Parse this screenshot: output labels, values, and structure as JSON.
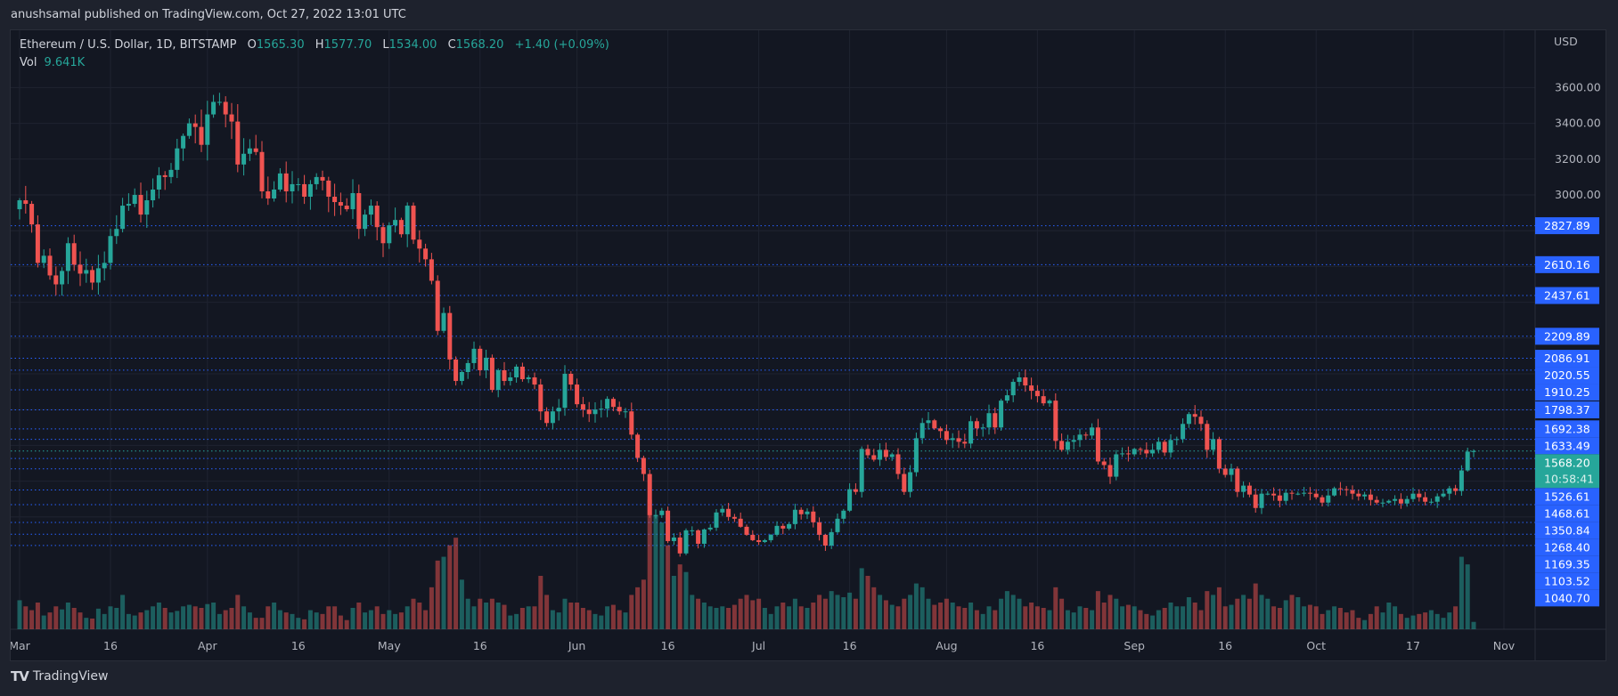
{
  "header": {
    "published": "anushsamal published on TradingView.com, Oct 27, 2022 13:01 UTC",
    "symbol": "Ethereum / U.S. Dollar, 1D, BITSTAMP",
    "o_label": "O",
    "o": "1565.30",
    "h_label": "H",
    "h": "1577.70",
    "l_label": "L",
    "l": "1534.00",
    "c_label": "C",
    "c": "1568.20",
    "change": "+1.40 (+0.09%)",
    "vol_label": "Vol",
    "vol_value": "9.641K"
  },
  "footer": {
    "logo_text": "TradingView",
    "logo_mark": "TV"
  },
  "colors": {
    "up": "#26a69a",
    "down": "#ef5350",
    "level_line": "#2962ff",
    "background": "#131722",
    "last_price": "#26a69a"
  },
  "chart_data": {
    "type": "candlestick",
    "currency_label": "USD",
    "interval": "1D",
    "y_scale": "linear",
    "grid": true,
    "y_ticks": [
      "3600.00",
      "3400.00",
      "3200.00",
      "3000.00"
    ],
    "x_ticks": [
      {
        "label": "Mar",
        "date": "2022-03-01"
      },
      {
        "label": "16",
        "date": "2022-03-16"
      },
      {
        "label": "Apr",
        "date": "2022-04-01"
      },
      {
        "label": "16",
        "date": "2022-04-16"
      },
      {
        "label": "May",
        "date": "2022-05-01"
      },
      {
        "label": "16",
        "date": "2022-05-16"
      },
      {
        "label": "Jun",
        "date": "2022-06-01"
      },
      {
        "label": "16",
        "date": "2022-06-16"
      },
      {
        "label": "Jul",
        "date": "2022-07-01"
      },
      {
        "label": "16",
        "date": "2022-07-16"
      },
      {
        "label": "Aug",
        "date": "2022-08-01"
      },
      {
        "label": "16",
        "date": "2022-08-16"
      },
      {
        "label": "Sep",
        "date": "2022-09-01"
      },
      {
        "label": "16",
        "date": "2022-09-16"
      },
      {
        "label": "Oct",
        "date": "2022-10-01"
      },
      {
        "label": "17",
        "date": "2022-10-17"
      },
      {
        "label": "Nov",
        "date": "2022-11-01"
      }
    ],
    "levels": [
      "2827.89",
      "2610.16",
      "2437.61",
      "2209.89",
      "2086.91",
      "2020.55",
      "1910.25",
      "1798.37",
      "1692.38",
      "1633.49",
      "1526.61",
      "1468.61",
      "1350.84",
      "1268.40",
      "1169.35",
      "1103.52",
      "1040.70"
    ],
    "last_price": "1568.20",
    "countdown": "10:58:41",
    "last_candle": {
      "open": 1565.3,
      "high": 1577.7,
      "low": 1534.0,
      "close": 1568.2
    },
    "daily_closes": {
      "2022-03": [
        2970,
        2950,
        2835,
        2620,
        2660,
        2550,
        2500,
        2575,
        2730,
        2610,
        2560,
        2580,
        2510,
        2590,
        2620,
        2770,
        2810,
        2940,
        2950,
        3000,
        2890,
        2970,
        3030,
        3110,
        3100,
        3140,
        3260,
        3330,
        3400,
        3380,
        3280
      ],
      "2022-04": [
        3450,
        3520,
        3520,
        3450,
        3410,
        3170,
        3230,
        3260,
        3240,
        3020,
        2980,
        3030,
        3120,
        3020,
        3060,
        3060,
        2990,
        3060,
        3100,
        3080,
        2990,
        2960,
        2940,
        2920,
        3010,
        2810,
        2890,
        2940,
        2820,
        2730
      ],
      "2022-05": [
        2830,
        2860,
        2780,
        2940,
        2750,
        2700,
        2640,
        2520,
        2240,
        2340,
        2080,
        1960,
        2010,
        2060,
        2140,
        2020,
        2090,
        1910,
        2020,
        1960,
        1980,
        2040,
        1970,
        1980,
        1940,
        1790,
        1725,
        1790,
        1810,
        2000,
        1940
      ],
      "2022-06": [
        1830,
        1800,
        1775,
        1800,
        1805,
        1860,
        1815,
        1790,
        1790,
        1660,
        1530,
        1440,
        1210,
        1210,
        1235,
        1065,
        1085,
        996,
        1125,
        1125,
        1050,
        1130,
        1140,
        1225,
        1245,
        1200,
        1190,
        1145,
        1100,
        1070
      ],
      "2022-07": [
        1060,
        1070,
        1100,
        1150,
        1135,
        1160,
        1240,
        1215,
        1230,
        1170,
        1100,
        1040,
        1115,
        1190,
        1235,
        1355,
        1340,
        1580,
        1545,
        1520,
        1575,
        1535,
        1550,
        1440,
        1340,
        1450,
        1640,
        1725,
        1740,
        1695,
        1680
      ],
      "2022-08": [
        1630,
        1640,
        1620,
        1610,
        1735,
        1695,
        1700,
        1780,
        1700,
        1850,
        1880,
        1955,
        1980,
        1935,
        1905,
        1875,
        1835,
        1850,
        1625,
        1575,
        1620,
        1630,
        1660,
        1655,
        1700,
        1510,
        1490,
        1425,
        1550,
        1555,
        1550
      ],
      "2022-09": [
        1580,
        1575,
        1555,
        1575,
        1620,
        1560,
        1630,
        1635,
        1720,
        1775,
        1760,
        1720,
        1575,
        1635,
        1470,
        1435,
        1470,
        1340,
        1375,
        1325,
        1250,
        1330,
        1330,
        1320,
        1290,
        1335,
        1330,
        1330,
        1335,
        1330
      ],
      "2022-10": [
        1310,
        1280,
        1320,
        1360,
        1355,
        1350,
        1330,
        1315,
        1325,
        1295,
        1280,
        1280,
        1290,
        1300,
        1275,
        1300,
        1330,
        1310,
        1285,
        1285,
        1315,
        1330,
        1360,
        1345,
        1460,
        1565,
        1568.2
      ]
    },
    "daily_volume_k": {
      "2022-03": [
        38,
        30,
        25,
        35,
        18,
        22,
        30,
        26,
        35,
        28,
        22,
        15,
        14,
        27,
        20,
        30,
        28,
        45,
        20,
        18,
        22,
        25,
        30,
        35,
        28,
        22,
        24,
        30,
        32,
        30,
        28
      ],
      "2022-04": [
        33,
        35,
        20,
        25,
        28,
        45,
        30,
        22,
        15,
        15,
        30,
        35,
        25,
        22,
        20,
        15,
        13,
        25,
        22,
        20,
        30,
        30,
        18,
        12,
        28,
        35,
        22,
        25,
        30,
        20
      ],
      "2022-05": [
        25,
        20,
        22,
        30,
        40,
        35,
        25,
        55,
        90,
        95,
        110,
        120,
        65,
        40,
        30,
        40,
        35,
        40,
        35,
        32,
        18,
        20,
        28,
        30,
        30,
        70,
        45,
        25,
        22,
        40,
        35
      ],
      "2022-06": [
        35,
        28,
        25,
        20,
        18,
        30,
        32,
        25,
        22,
        45,
        55,
        65,
        170,
        150,
        140,
        110,
        70,
        85,
        75,
        45,
        40,
        35,
        30,
        28,
        30,
        28,
        32,
        40,
        45,
        38
      ],
      "2022-07": [
        40,
        28,
        20,
        30,
        35,
        30,
        40,
        30,
        28,
        35,
        45,
        40,
        50,
        45,
        42,
        48,
        40,
        80,
        70,
        55,
        45,
        38,
        32,
        30,
        40,
        45,
        60,
        55,
        40,
        32,
        35
      ],
      "2022-08": [
        40,
        35,
        30,
        28,
        35,
        25,
        20,
        30,
        25,
        40,
        50,
        45,
        40,
        30,
        35,
        30,
        28,
        25,
        55,
        40,
        25,
        22,
        30,
        28,
        25,
        50,
        35,
        45,
        40,
        30,
        32
      ],
      "2022-09": [
        30,
        25,
        20,
        18,
        25,
        28,
        35,
        30,
        30,
        42,
        35,
        25,
        50,
        45,
        55,
        30,
        32,
        40,
        45,
        40,
        60,
        45,
        40,
        30,
        28,
        38,
        45,
        42,
        30,
        32
      ],
      "2022-10": [
        30,
        20,
        25,
        30,
        28,
        22,
        25,
        15,
        12,
        20,
        30,
        22,
        35,
        30,
        20,
        15,
        18,
        20,
        22,
        25,
        20,
        15,
        22,
        30,
        95,
        85,
        9.641
      ]
    }
  }
}
